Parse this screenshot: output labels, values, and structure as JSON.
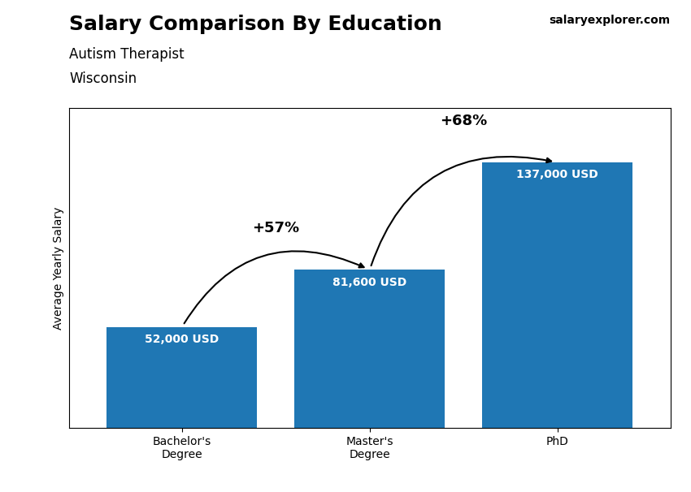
{
  "chart_data": {
    "type": "bar",
    "title": "Salary Comparison By Education",
    "subtitle": [
      "Autism Therapist",
      "Wisconsin"
    ],
    "source": "salaryexplorer.com",
    "ylabel": "Average Yearly Salary",
    "categories": [
      "Bachelor's\nDegree",
      "Master's\nDegree",
      "PhD"
    ],
    "values": [
      52000,
      81600,
      137000
    ],
    "value_labels": [
      "52,000 USD",
      "81,600 USD",
      "137,000 USD"
    ],
    "data_labels": true,
    "annotations": [
      "+57%",
      "+68%"
    ],
    "ylim": [
      0,
      165000
    ],
    "tick_labels": "x"
  }
}
